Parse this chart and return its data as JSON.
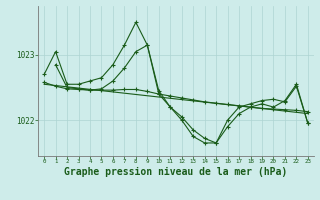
{
  "bg_color": "#ceecea",
  "grid_color": "#add5d2",
  "line_color": "#1a5c1a",
  "xlabel": "Graphe pression niveau de la mer (hPa)",
  "xlabel_fontsize": 7,
  "xticks": [
    0,
    1,
    2,
    3,
    4,
    5,
    6,
    7,
    8,
    9,
    10,
    11,
    12,
    13,
    14,
    15,
    16,
    17,
    18,
    19,
    20,
    21,
    22,
    23
  ],
  "ytick_labels": [
    1022,
    1023
  ],
  "ylim": [
    1021.45,
    1023.75
  ],
  "xlim": [
    -0.5,
    23.5
  ],
  "series1_x": [
    0,
    1,
    2,
    3,
    4,
    5,
    6,
    7,
    8,
    9,
    10,
    11,
    12,
    13,
    14,
    15,
    16,
    17,
    18,
    19,
    20,
    21,
    22,
    23
  ],
  "series1_y": [
    1022.7,
    1023.05,
    1022.55,
    1022.55,
    1022.6,
    1022.65,
    1022.85,
    1023.15,
    1023.5,
    1023.15,
    1022.45,
    1022.2,
    1022.0,
    1021.75,
    1021.65,
    1021.65,
    1021.9,
    1022.1,
    1022.2,
    1022.25,
    1022.2,
    1022.3,
    1022.55,
    1021.95
  ],
  "series2_x": [
    0,
    1,
    2,
    3,
    4,
    5,
    6,
    7,
    8,
    9,
    10,
    11,
    12,
    13,
    14,
    15,
    16,
    17,
    18,
    19,
    20,
    21,
    22,
    23
  ],
  "series2_y": [
    1022.58,
    1022.52,
    1022.48,
    1022.47,
    1022.46,
    1022.46,
    1022.46,
    1022.47,
    1022.47,
    1022.44,
    1022.4,
    1022.37,
    1022.34,
    1022.31,
    1022.28,
    1022.26,
    1022.24,
    1022.22,
    1022.2,
    1022.18,
    1022.17,
    1022.16,
    1022.15,
    1022.13
  ],
  "series3_x": [
    0,
    23
  ],
  "series3_y": [
    1022.55,
    1022.1
  ],
  "series4_x": [
    1,
    2,
    3,
    4,
    5,
    6,
    7,
    8,
    9,
    10,
    11,
    12,
    13,
    14,
    15,
    16,
    17,
    18,
    19,
    20,
    21,
    22,
    23
  ],
  "series4_y": [
    1022.85,
    1022.5,
    1022.48,
    1022.46,
    1022.48,
    1022.6,
    1022.8,
    1023.05,
    1023.15,
    1022.4,
    1022.2,
    1022.05,
    1021.85,
    1021.72,
    1021.65,
    1022.0,
    1022.2,
    1022.25,
    1022.3,
    1022.32,
    1022.28,
    1022.52,
    1021.95
  ]
}
